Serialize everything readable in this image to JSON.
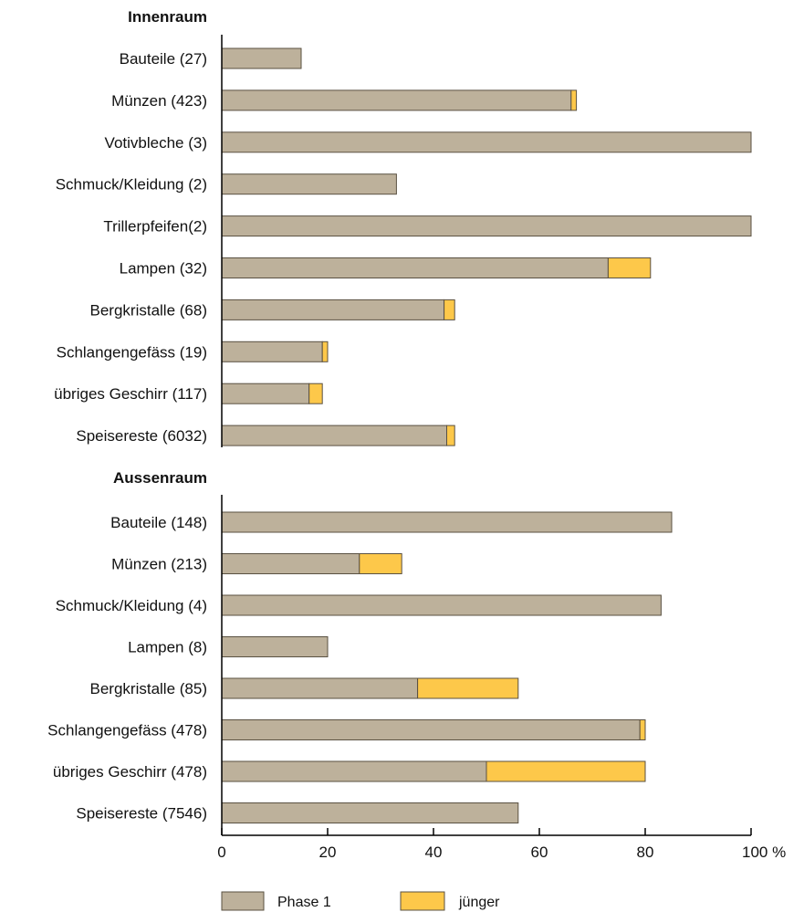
{
  "colors": {
    "phase1": "#bdb19b",
    "juenger": "#fdc84a",
    "stroke": "#5a5142",
    "axis": "#000000"
  },
  "chart_data": {
    "type": "bar",
    "orientation": "horizontal",
    "stacked": true,
    "xlim": [
      0,
      100
    ],
    "xticks": [
      "0",
      "20",
      "40",
      "60",
      "80",
      "100 %"
    ],
    "legend_position": "bottom",
    "series": [
      {
        "name": "Phase 1",
        "color": "#bdb19b"
      },
      {
        "name": "jünger",
        "color": "#fdc84a"
      }
    ],
    "groups": [
      {
        "title": "Innenraum",
        "categories": [
          "Bauteile (27)",
          "Münzen (423)",
          "Votivbleche (3)",
          "Schmuck/Kleidung (2)",
          "Trillerpfeifen(2)",
          "Lampen (32)",
          "Bergkristalle (68)",
          "Schlangengefäss (19)",
          "übriges Geschirr (117)",
          "Speisereste (6032)"
        ],
        "phase1": [
          15,
          66,
          100,
          33,
          100,
          73,
          42,
          19,
          16.5,
          42.5
        ],
        "juenger": [
          0,
          1,
          0,
          0,
          0,
          8,
          2,
          1,
          2.5,
          1.5
        ]
      },
      {
        "title": "Aussenraum",
        "categories": [
          "Bauteile (148)",
          "Münzen (213)",
          "Schmuck/Kleidung (4)",
          "Lampen (8)",
          "Bergkristalle (85)",
          "Schlangengefäss (478)",
          "übriges Geschirr (478)",
          "Speisereste (7546)"
        ],
        "phase1": [
          85,
          26,
          83,
          20,
          37,
          79,
          50,
          56
        ],
        "juenger": [
          0,
          8,
          0,
          0,
          19,
          1,
          30,
          0
        ]
      }
    ]
  }
}
